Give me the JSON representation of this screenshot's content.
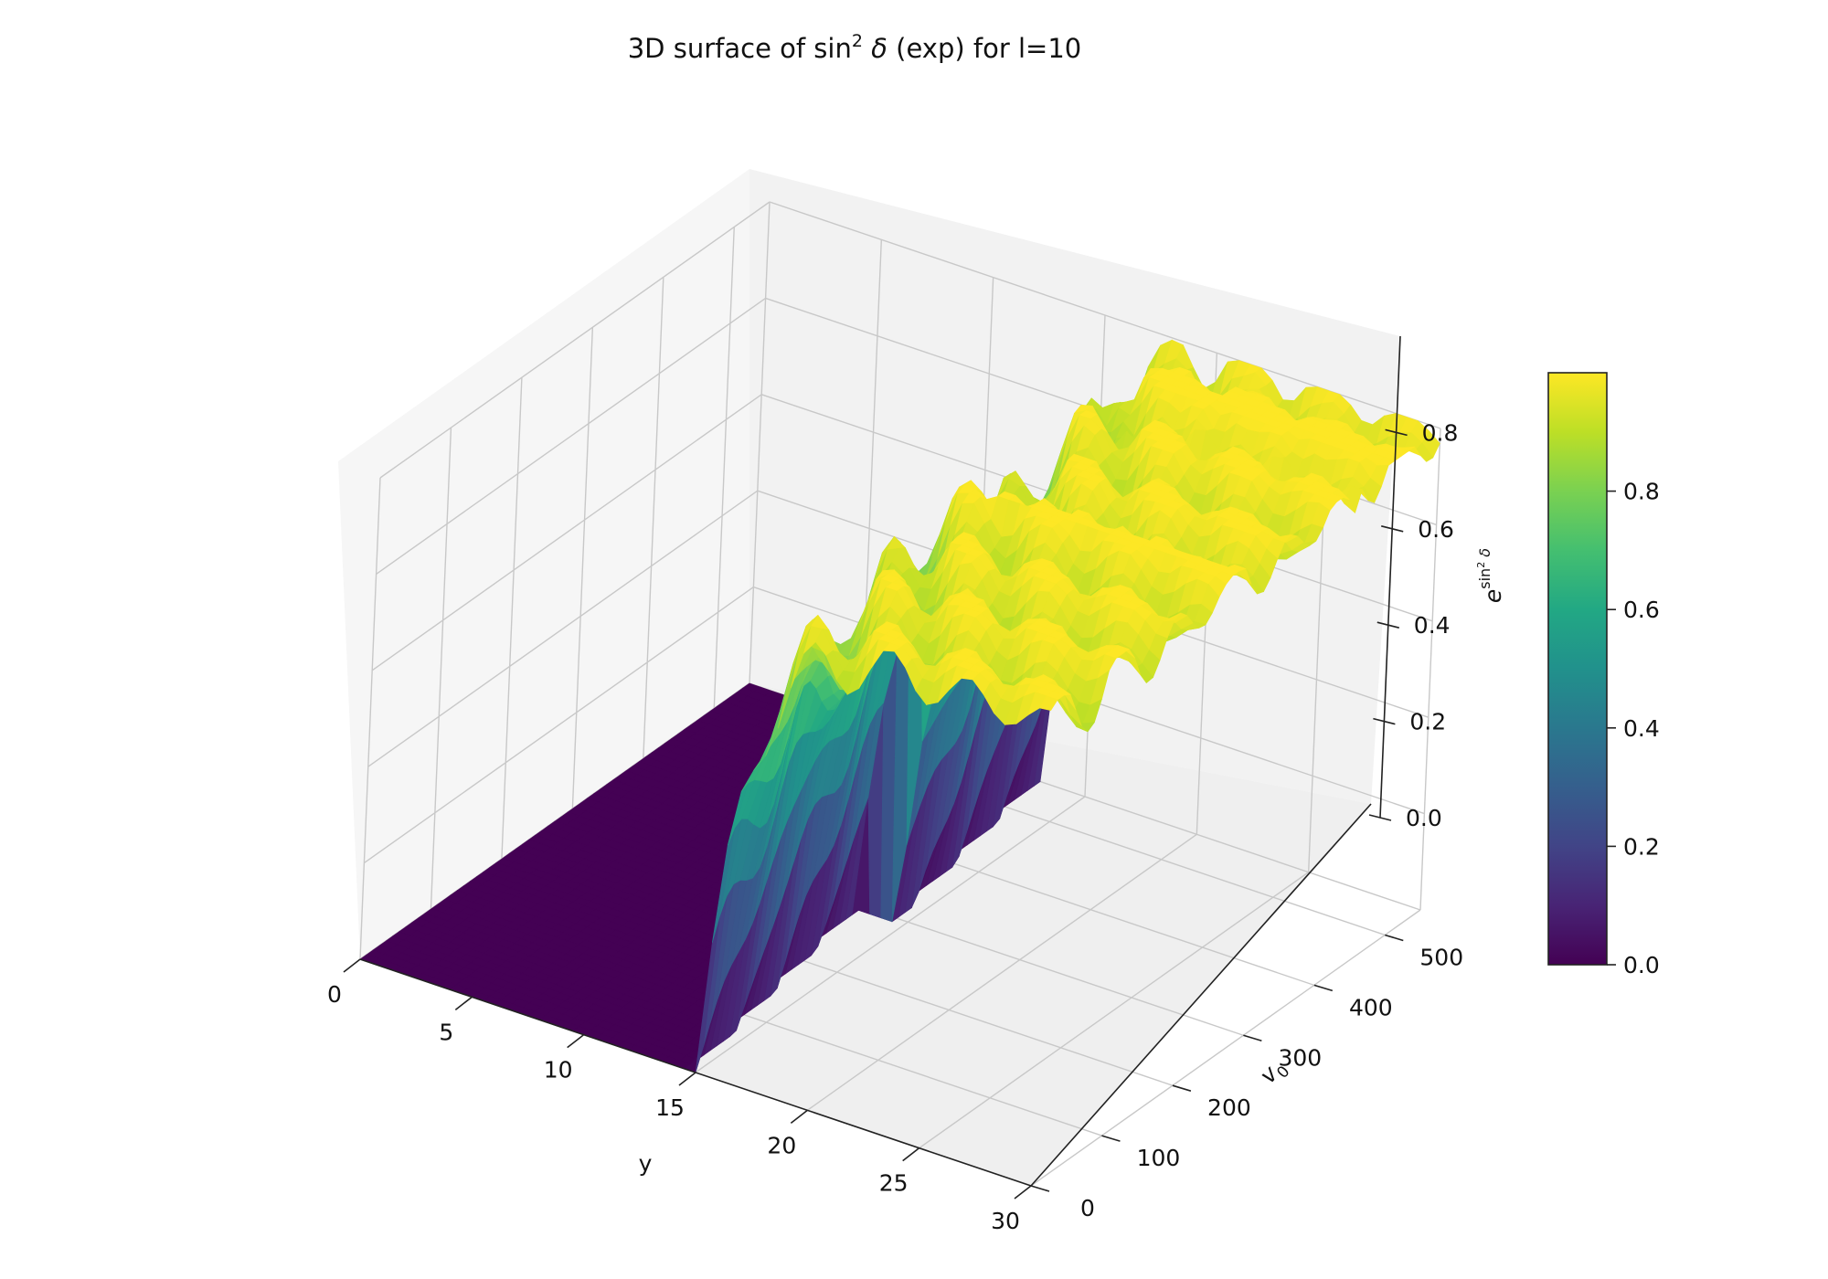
{
  "chart_data": {
    "type": "surface3d",
    "title_main": "3D surface of sin",
    "title_sup": "2",
    "title_delta": "δ",
    "title_rest": " (exp) for l=10",
    "x_axis": {
      "label": "y",
      "range": [
        0,
        30
      ],
      "ticks": [
        0,
        5,
        10,
        15,
        20,
        25,
        30
      ],
      "tick_labels": [
        "0",
        "5",
        "10",
        "15",
        "20",
        "25",
        "30"
      ]
    },
    "y_axis": {
      "label_base": "v",
      "label_sub": "0",
      "range": [
        0,
        550
      ],
      "ticks": [
        0,
        100,
        200,
        300,
        400,
        500
      ],
      "tick_labels": [
        "0",
        "100",
        "200",
        "300",
        "400",
        "500"
      ]
    },
    "z_axis": {
      "label_base": "e",
      "label_sup_sin": "sin",
      "label_sup_two": "2",
      "label_sup_delta": "δ",
      "range": [
        0,
        1
      ],
      "ticks": [
        0,
        0.2,
        0.4,
        0.6,
        0.8
      ],
      "tick_labels": [
        "0.0",
        "0.2",
        "0.4",
        "0.6",
        "0.8"
      ]
    },
    "colorbar": {
      "range": [
        0,
        1
      ],
      "ticks": [
        0,
        0.2,
        0.4,
        0.6,
        0.8
      ],
      "tick_labels": [
        "0.0",
        "0.2",
        "0.4",
        "0.6",
        "0.8"
      ],
      "colormap": "viridis"
    },
    "ridges": [
      {
        "v0_start": 0,
        "v0_end": 290,
        "y_rise": 13.0,
        "peak": 0.96
      },
      {
        "v0_start": 250,
        "v0_end": 550,
        "y_rise": 13.0,
        "peak": 0.97
      },
      {
        "v0_start": 440,
        "v0_end": 550,
        "y_rise": 13.5,
        "peak": 0.99
      }
    ],
    "grid": true
  }
}
